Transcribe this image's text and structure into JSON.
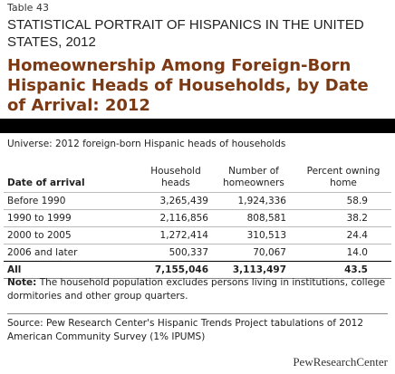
{
  "header": {
    "label": "Table 43",
    "subtitle": "STATISTICAL PORTRAIT OF HISPANICS IN THE UNITED STATES, 2012",
    "title": "Homeownership Among Foreign-Born Hispanic Heads of Households, by Date of Arrival: 2012"
  },
  "universe": "Universe: 2012 foreign-born Hispanic heads of households",
  "table": {
    "columns": [
      "Date of arrival",
      "Household heads",
      "Number of homeowners",
      "Percent owning home"
    ],
    "rows": [
      [
        "Before 1990",
        "3,265,439",
        "1,924,336",
        "58.9"
      ],
      [
        "1990 to 1999",
        "2,116,856",
        "808,581",
        "38.2"
      ],
      [
        "2000 to 2005",
        "1,272,414",
        "310,513",
        "24.4"
      ],
      [
        "2006 and later",
        "500,337",
        "70,067",
        "14.0"
      ]
    ],
    "total": [
      "All",
      "7,155,046",
      "3,113,497",
      "43.5"
    ]
  },
  "note": {
    "label": "Note:",
    "text": "The household population excludes persons living in institutions, college dormitories and other group quarters."
  },
  "source": "Source: Pew Research Center's Hispanic Trends Project tabulations of 2012 American Community Survey (1% IPUMS)",
  "logo": "PewResearchCenter"
}
